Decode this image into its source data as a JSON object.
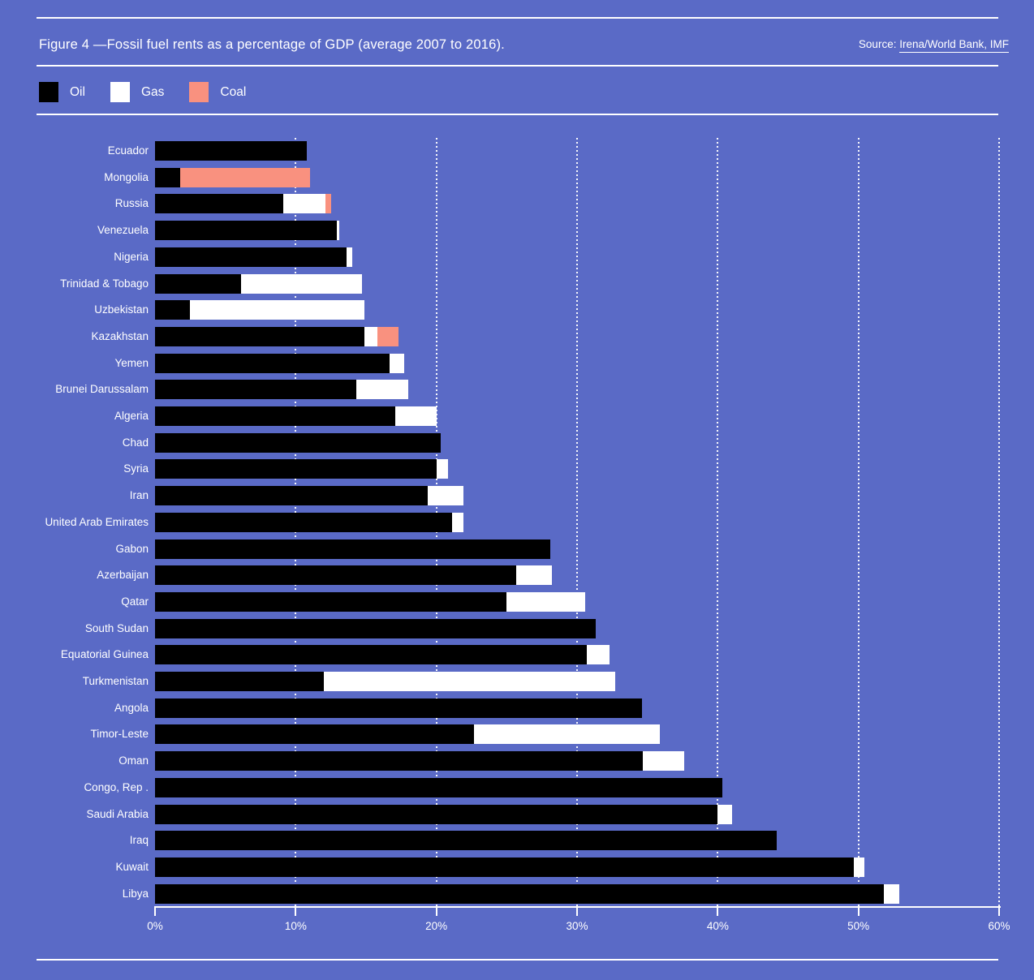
{
  "header": {
    "title": "Figure 4 —Fossil fuel rents as a percentage of GDP (average 2007 to 2016).",
    "source_prefix": "Source: ",
    "source_link": "Irena/World Bank, IMF"
  },
  "legend": [
    {
      "label": "Oil",
      "color": "#000000"
    },
    {
      "label": "Gas",
      "color": "#ffffff"
    },
    {
      "label": "Coal",
      "color": "#f9917f"
    }
  ],
  "colors": {
    "background": "#5a6ac6",
    "rule": "#ffffff",
    "text": "#ffffff",
    "oil": "#000000",
    "gas": "#ffffff",
    "coal": "#f9917f"
  },
  "chart_data": {
    "type": "bar",
    "orientation": "horizontal",
    "stacked": true,
    "title": "Fossil fuel rents as a percentage of GDP (average 2007 to 2016)",
    "xlabel": "",
    "ylabel": "",
    "unit": "% of GDP",
    "xlim": [
      0,
      60
    ],
    "x_ticks": [
      "0%",
      "10%",
      "20%",
      "30%",
      "40%",
      "50%",
      "60%"
    ],
    "x_tick_values": [
      0,
      10,
      20,
      30,
      40,
      50,
      60
    ],
    "grid": "vertical dotted gridlines at 10% intervals",
    "legend_position": "top-left",
    "categories": [
      "Ecuador",
      "Mongolia",
      "Russia",
      "Venezuela",
      "Nigeria",
      "Trinidad & Tobago",
      "Uzbekistan",
      "Kazakhstan",
      "Yemen",
      "Brunei Darussalam",
      "Algeria",
      "Chad",
      "Syria",
      "Iran",
      "United Arab Emirates",
      "Gabon",
      "Azerbaijan",
      "Qatar",
      "South Sudan",
      "Equatorial Guinea",
      "Turkmenistan",
      "Angola",
      "Timor-Leste",
      "Oman",
      "Congo, Rep .",
      "Saudi Arabia",
      "Iraq",
      "Kuwait",
      "Libya"
    ],
    "series": [
      {
        "name": "Oil",
        "color": "#000000",
        "values": [
          10.8,
          1.8,
          9.1,
          12.9,
          13.6,
          6.1,
          2.5,
          14.9,
          16.7,
          14.3,
          17.1,
          20.3,
          20.0,
          19.4,
          21.1,
          28.1,
          25.7,
          25.0,
          31.3,
          30.7,
          12.0,
          34.6,
          22.7,
          34.7,
          40.3,
          40.0,
          44.2,
          49.7,
          51.8
        ]
      },
      {
        "name": "Gas",
        "color": "#ffffff",
        "values": [
          0,
          0,
          3.0,
          0.2,
          0.4,
          8.6,
          12.4,
          0.9,
          1.0,
          3.7,
          2.9,
          0,
          0.8,
          2.5,
          0.8,
          0,
          2.5,
          5.6,
          0,
          1.6,
          20.7,
          0,
          13.2,
          2.9,
          0,
          1.0,
          0,
          0.7,
          1.1
        ]
      },
      {
        "name": "Coal",
        "color": "#f9917f",
        "values": [
          0,
          9.2,
          0.4,
          0,
          0,
          0,
          0,
          1.5,
          0,
          0,
          0,
          0,
          0,
          0,
          0,
          0,
          0,
          0,
          0,
          0,
          0,
          0,
          0,
          0,
          0,
          0,
          0,
          0,
          0
        ]
      }
    ]
  }
}
